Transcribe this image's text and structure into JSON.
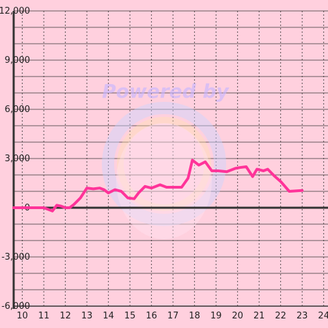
{
  "chart_data": {
    "type": "line",
    "title": "",
    "xlabel": "",
    "ylabel": "",
    "xlim": [
      9.6,
      24.2
    ],
    "ylim": [
      -6000,
      12000
    ],
    "x_ticks": [
      "10",
      "11",
      "12",
      "13",
      "14",
      "15",
      "16",
      "17",
      "18",
      "19",
      "20",
      "21",
      "22",
      "23",
      "24"
    ],
    "y_ticks": [
      "12,000",
      "9,000",
      "6,000",
      "3,000",
      "0",
      "-3,000",
      "-6,000"
    ],
    "grid": true,
    "watermark_text": "Powered by",
    "line_color": "#ff3399",
    "series": [
      {
        "name": "",
        "x": [
          9.6,
          10,
          10.5,
          11,
          11.2,
          11.4,
          11.6,
          11.8,
          12,
          12.2,
          12.4,
          12.7,
          13,
          13.3,
          13.6,
          13.8,
          14.0,
          14.3,
          14.6,
          14.9,
          15.2,
          15.4,
          15.7,
          16.0,
          16.4,
          16.7,
          16.9,
          17.1,
          17.4,
          17.7,
          17.9,
          18.2,
          18.5,
          18.8,
          19.1,
          19.5,
          19.9,
          20.1,
          20.4,
          20.7,
          20.9,
          21.2,
          21.4,
          21.7,
          22.0,
          22.4,
          23.0
        ],
        "y": [
          0,
          0,
          0,
          0,
          -100,
          -200,
          150,
          100,
          0,
          0,
          200,
          600,
          1200,
          1150,
          1200,
          1100,
          900,
          1100,
          1000,
          600,
          550,
          900,
          1300,
          1200,
          1400,
          1250,
          1250,
          1250,
          1250,
          1800,
          2900,
          2600,
          2800,
          2250,
          2250,
          2200,
          2400,
          2450,
          2500,
          1900,
          2350,
          2250,
          2350,
          1950,
          1600,
          1000,
          1050
        ]
      }
    ]
  }
}
